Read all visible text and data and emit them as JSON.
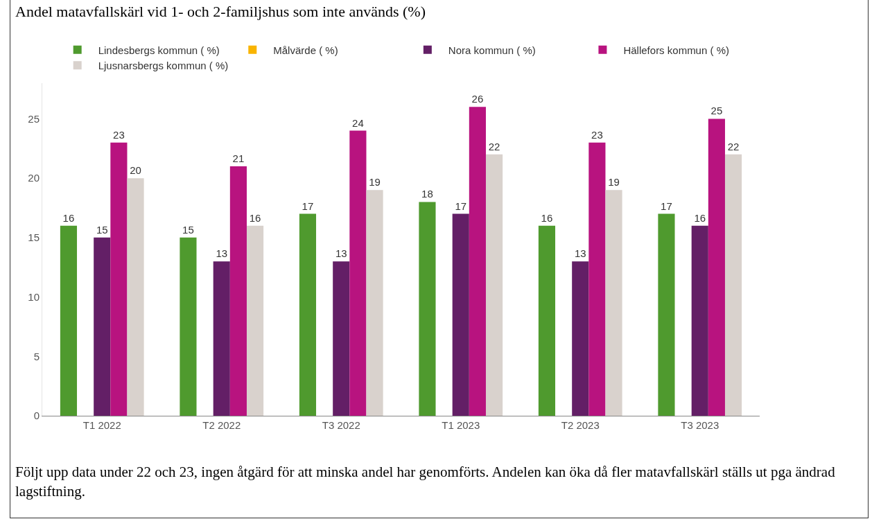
{
  "chart_data": {
    "type": "bar",
    "title": "Andel matavfallskärl vid 1- och 2-familjshus som inte används (%)",
    "categories": [
      "T1 2022",
      "T2 2022",
      "T3 2022",
      "T1 2023",
      "T2 2023",
      "T3 2023"
    ],
    "series": [
      {
        "name": "Lindesbergs kommun ( %)",
        "color": "#4f9a2e",
        "values": [
          16,
          15,
          17,
          18,
          16,
          17
        ]
      },
      {
        "name": "Målvärde ( %)",
        "color": "#f9b400",
        "values": [
          null,
          null,
          null,
          null,
          null,
          null
        ]
      },
      {
        "name": "Nora kommun ( %)",
        "color": "#631f66",
        "values": [
          15,
          13,
          13,
          17,
          13,
          16
        ]
      },
      {
        "name": "Hällefors kommun ( %)",
        "color": "#b8137f",
        "values": [
          23,
          21,
          24,
          26,
          23,
          25
        ]
      },
      {
        "name": "Ljusnarsbergs kommun ( %)",
        "color": "#d9d2cd",
        "values": [
          20,
          16,
          19,
          22,
          19,
          22
        ]
      }
    ],
    "ylim": [
      0,
      28
    ],
    "yticks": [
      0,
      5,
      10,
      15,
      20,
      25
    ],
    "grid": false,
    "legend": "top",
    "data_labels": true,
    "annotations": [
      "Följt upp data under 22 och 23, ingen åtgärd för att minska andel har genomförts. Andelen kan öka då fler matavfallskärl ställs ut pga ändrad lagstiftning."
    ]
  }
}
